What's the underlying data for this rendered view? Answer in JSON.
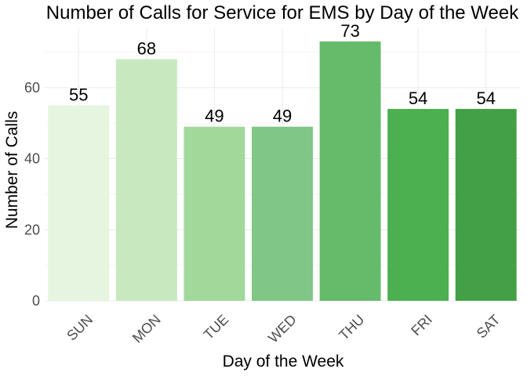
{
  "chart_data": {
    "type": "bar",
    "title": "Number of Calls for Service for EMS by Day of the Week",
    "xlabel": "Day of the Week",
    "ylabel": "Number of Calls",
    "categories": [
      "SUN",
      "MON",
      "TUE",
      "WED",
      "THU",
      "FRI",
      "SAT"
    ],
    "values": [
      55,
      68,
      49,
      49,
      73,
      54,
      54
    ],
    "bar_colors": [
      "#e5f5e0",
      "#c7e9c0",
      "#a1d99b",
      "#80c686",
      "#66bb6a",
      "#4caf50",
      "#43a047"
    ],
    "ylim": [
      0,
      76.5
    ],
    "y_ticks": [
      0,
      20,
      40,
      60
    ],
    "grid": true,
    "legend": "none"
  }
}
